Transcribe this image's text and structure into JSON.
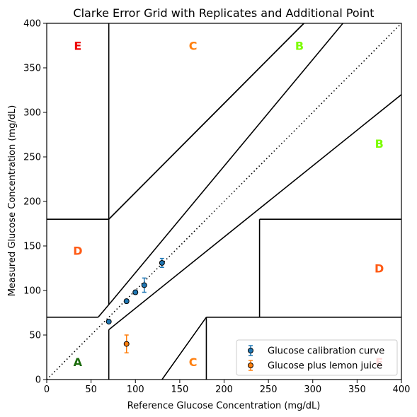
{
  "chart_data": {
    "type": "scatter",
    "title": "Clarke Error Grid with Replicates and Additional Point",
    "xlabel": "Reference Glucose Concentration (mg/dL)",
    "ylabel": "Measured Glucose Concentration (mg/dL)",
    "xlim": [
      0,
      400
    ],
    "ylim": [
      0,
      400
    ],
    "x_ticks": [
      0,
      50,
      100,
      150,
      200,
      250,
      300,
      350,
      400
    ],
    "y_ticks": [
      0,
      50,
      100,
      150,
      200,
      250,
      300,
      350,
      400
    ],
    "grid": false,
    "legend_position": "bottom-right",
    "series": [
      {
        "name": "Glucose calibration curve",
        "color": "#1f77b4",
        "points": [
          {
            "x": 70,
            "y": 65,
            "err": 1
          },
          {
            "x": 90,
            "y": 88,
            "err": 2
          },
          {
            "x": 100,
            "y": 98,
            "err": 2
          },
          {
            "x": 110,
            "y": 106,
            "err": 8
          },
          {
            "x": 130,
            "y": 131,
            "err": 5
          }
        ]
      },
      {
        "name": "Glucose plus lemon juice",
        "color": "#ff7f0e",
        "points": [
          {
            "x": 90,
            "y": 40,
            "err": 10
          }
        ]
      }
    ],
    "reference_line": {
      "style": "dotted",
      "from": [
        0,
        0
      ],
      "to": [
        400,
        400
      ]
    },
    "zone_lines": [
      [
        [
          0,
          180
        ],
        [
          70,
          180
        ]
      ],
      [
        [
          70,
          180
        ],
        [
          290,
          400
        ]
      ],
      [
        [
          70,
          84
        ],
        [
          70,
          400
        ]
      ],
      [
        [
          0,
          70
        ],
        [
          58,
          70
        ]
      ],
      [
        [
          58,
          70
        ],
        [
          70,
          84
        ]
      ],
      [
        [
          70,
          0
        ],
        [
          70,
          56
        ]
      ],
      [
        [
          70,
          56
        ],
        [
          400,
          320
        ]
      ],
      [
        [
          130,
          0
        ],
        [
          180,
          70
        ]
      ],
      [
        [
          180,
          0
        ],
        [
          180,
          70
        ]
      ],
      [
        [
          180,
          70
        ],
        [
          400,
          70
        ]
      ],
      [
        [
          240,
          70
        ],
        [
          240,
          180
        ]
      ],
      [
        [
          240,
          180
        ],
        [
          400,
          180
        ]
      ],
      [
        [
          70,
          180
        ],
        [
          290,
          400
        ]
      ],
      [
        [
          70,
          84
        ],
        [
          334,
          400
        ]
      ]
    ],
    "region_labels": [
      {
        "text": "E",
        "x": 35,
        "y": 375,
        "color": "#ee0000"
      },
      {
        "text": "C",
        "x": 165,
        "y": 375,
        "color": "#ff7f0e"
      },
      {
        "text": "B",
        "x": 285,
        "y": 375,
        "color": "#7cfc00"
      },
      {
        "text": "B",
        "x": 375,
        "y": 265,
        "color": "#7cfc00"
      },
      {
        "text": "D",
        "x": 35,
        "y": 145,
        "color": "#ff5a14"
      },
      {
        "text": "D",
        "x": 375,
        "y": 125,
        "color": "#ff5a14"
      },
      {
        "text": "A",
        "x": 35,
        "y": 20,
        "color": "#1a6b0a"
      },
      {
        "text": "C",
        "x": 165,
        "y": 20,
        "color": "#ff7f0e"
      },
      {
        "text": "E",
        "x": 375,
        "y": 20,
        "color": "#ee0000"
      }
    ]
  }
}
